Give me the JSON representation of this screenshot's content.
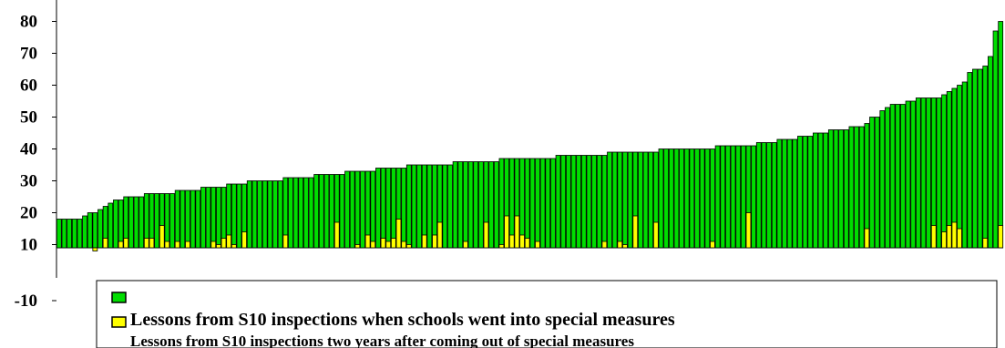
{
  "chart_data": {
    "type": "bar",
    "title": "",
    "xlabel": "",
    "ylabel": "",
    "ylim": [
      -10,
      85
    ],
    "yticks": [
      -10,
      10,
      20,
      30,
      40,
      50,
      60,
      70,
      80
    ],
    "grid": false,
    "legend_placement": "bottom",
    "colors": {
      "series_1": "#00dd00",
      "series_2": "#ffff00",
      "outline": "#000000"
    },
    "series": [
      {
        "name": "",
        "values": [
          9,
          9,
          9,
          9,
          9,
          10,
          11,
          11,
          12,
          13,
          14,
          15,
          15,
          16,
          16,
          16,
          16,
          17,
          17,
          17,
          17,
          17,
          17,
          18,
          18,
          18,
          18,
          18,
          19,
          19,
          19,
          19,
          19,
          20,
          20,
          20,
          20,
          21,
          21,
          21,
          21,
          21,
          21,
          21,
          22,
          22,
          22,
          22,
          22,
          22,
          23,
          23,
          23,
          23,
          23,
          23,
          24,
          24,
          24,
          24,
          24,
          24,
          25,
          25,
          25,
          25,
          25,
          25,
          26,
          26,
          26,
          26,
          26,
          26,
          26,
          26,
          26,
          27,
          27,
          27,
          27,
          27,
          27,
          27,
          27,
          27,
          28,
          28,
          28,
          28,
          28,
          28,
          28,
          28,
          28,
          28,
          28,
          29,
          29,
          29,
          29,
          29,
          29,
          29,
          29,
          29,
          29,
          30,
          30,
          30,
          30,
          30,
          30,
          30,
          30,
          30,
          30,
          31,
          31,
          31,
          31,
          31,
          31,
          31,
          31,
          31,
          31,
          31,
          32,
          32,
          32,
          32,
          32,
          32,
          32,
          32,
          33,
          33,
          33,
          33,
          34,
          34,
          34,
          34,
          35,
          35,
          35,
          36,
          36,
          36,
          37,
          37,
          37,
          37,
          38,
          38,
          38,
          39,
          41,
          41,
          43,
          44,
          45,
          45,
          45,
          46,
          46,
          47,
          47,
          47,
          47,
          47,
          48,
          49,
          50,
          51,
          52,
          55,
          56,
          56,
          57,
          60,
          68,
          71
        ]
      },
      {
        "name": "Lessons from S10 inspections when schools went into special measures",
        "values": [
          0,
          0,
          0,
          0,
          0,
          0,
          0,
          -1,
          0,
          3,
          0,
          0,
          2,
          3,
          0,
          0,
          0,
          3,
          3,
          0,
          7,
          2,
          0,
          2,
          0,
          2,
          0,
          0,
          0,
          0,
          2,
          1,
          3,
          4,
          1,
          0,
          5,
          0,
          0,
          0,
          0,
          0,
          0,
          0,
          4,
          0,
          0,
          0,
          0,
          0,
          0,
          0,
          0,
          0,
          8,
          0,
          0,
          0,
          1,
          0,
          4,
          2,
          0,
          3,
          2,
          3,
          9,
          2,
          1,
          0,
          0,
          4,
          0,
          4,
          8,
          0,
          0,
          0,
          0,
          2,
          0,
          0,
          0,
          8,
          0,
          0,
          1,
          10,
          4,
          10,
          4,
          3,
          0,
          2,
          0,
          0,
          0,
          0,
          0,
          0,
          0,
          0,
          0,
          0,
          0,
          0,
          2,
          0,
          0,
          2,
          1,
          0,
          10,
          0,
          0,
          0,
          8,
          0,
          0,
          0,
          0,
          0,
          0,
          0,
          0,
          0,
          0,
          2,
          0,
          0,
          0,
          0,
          0,
          0,
          11,
          0,
          0,
          0,
          0,
          0,
          0,
          0,
          0,
          0,
          0,
          0,
          0,
          0,
          0,
          0,
          0,
          0,
          0,
          0,
          0,
          0,
          0,
          6,
          0,
          0,
          0,
          0,
          0,
          0,
          0,
          0,
          0,
          0,
          0,
          0,
          7,
          0,
          5,
          7,
          8,
          6,
          0,
          0,
          0,
          0,
          3,
          0,
          0,
          7,
          0,
          0,
          0,
          0,
          3,
          0,
          0,
          0,
          0,
          3,
          0,
          0,
          0,
          0,
          0,
          0,
          0,
          0,
          0,
          0,
          0,
          0,
          0,
          0,
          0,
          0,
          5,
          0,
          0,
          0,
          0,
          0,
          4,
          0,
          0,
          0,
          0,
          0,
          0,
          0,
          0,
          0,
          0,
          0,
          0,
          0,
          0,
          0,
          0,
          0,
          7,
          0,
          6,
          3,
          0,
          0,
          0,
          7,
          0,
          0,
          0,
          0,
          0,
          0,
          0,
          0,
          0,
          0,
          3,
          0,
          0,
          8,
          0,
          0,
          3,
          0,
          0,
          0,
          0,
          0,
          0,
          2,
          0,
          0,
          7,
          6,
          0,
          0,
          2,
          0,
          0,
          0,
          0,
          5,
          0,
          0,
          0,
          0,
          0,
          0,
          0,
          0,
          0,
          0,
          0,
          0,
          0,
          0,
          0,
          0,
          0,
          0,
          0,
          0,
          0,
          0,
          0,
          0,
          0,
          0,
          0,
          0,
          0,
          0,
          0,
          0,
          0,
          0,
          0,
          0,
          0,
          0,
          0,
          0,
          0,
          0,
          0,
          0,
          0,
          0,
          0,
          0,
          0,
          0,
          0,
          0
        ]
      },
      {
        "name": "Lessons from S10 inspections two years after coming out of special measures",
        "values": []
      }
    ]
  }
}
